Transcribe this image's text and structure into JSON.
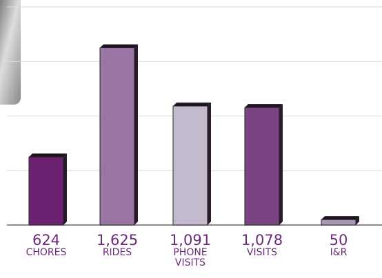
{
  "chart_data": {
    "type": "bar",
    "categories": [
      "CHORES",
      "RIDES",
      "PHONE VISITS",
      "VISITS",
      "I&R"
    ],
    "values": [
      624,
      1625,
      1091,
      1078,
      50
    ],
    "value_labels": [
      "624",
      "1,625",
      "1,091",
      "1,078",
      "50"
    ],
    "colors": [
      "#6b2271",
      "#9a76a4",
      "#c4bace",
      "#7b4384",
      "#a997b3"
    ],
    "ylim": [
      0,
      2000
    ],
    "yticks": [
      0,
      500,
      1000,
      1500,
      2000
    ],
    "grid": true
  }
}
